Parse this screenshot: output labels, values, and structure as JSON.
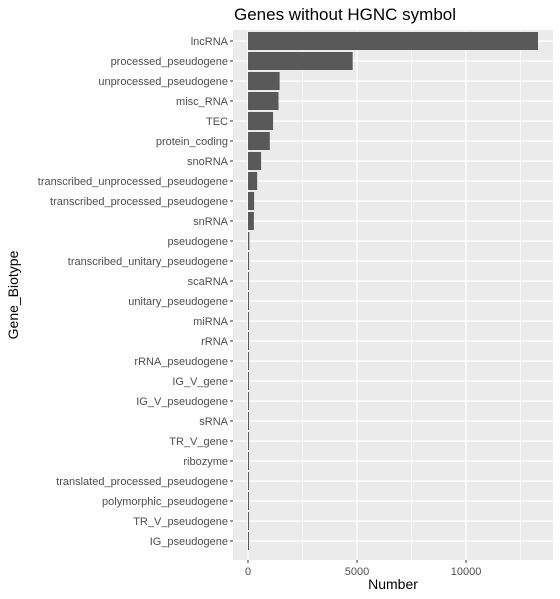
{
  "chart_data": {
    "type": "bar",
    "orientation": "horizontal",
    "title": "Genes without HGNC symbol",
    "xlabel": "Number",
    "ylabel": "Gene_Biotype",
    "xlim": [
      0,
      13700
    ],
    "xticks": [
      "0",
      "5000",
      "10000"
    ],
    "grid": true,
    "legend": "none",
    "colors": {
      "panel_background": "#ebebeb",
      "grid": "#ffffff",
      "bar_fill": "#595959",
      "tick_text": "#4d4d4d"
    },
    "categories": [
      "lncRNA",
      "processed_pseudogene",
      "unprocessed_pseudogene",
      "misc_RNA",
      "TEC",
      "protein_coding",
      "snoRNA",
      "transcribed_unprocessed_pseudogene",
      "transcribed_processed_pseudogene",
      "snRNA",
      "pseudogene",
      "transcribed_unitary_pseudogene",
      "scaRNA",
      "unitary_pseudogene",
      "miRNA",
      "rRNA",
      "rRNA_pseudogene",
      "IG_V_gene",
      "IG_V_pseudogene",
      "sRNA",
      "TR_V_gene",
      "ribozyme",
      "translated_processed_pseudogene",
      "polymorphic_pseudogene",
      "TR_V_pseudogene",
      "IG_pseudogene"
    ],
    "values": [
      13300,
      4800,
      1450,
      1400,
      1150,
      1000,
      600,
      420,
      280,
      270,
      60,
      50,
      40,
      40,
      30,
      25,
      20,
      15,
      15,
      12,
      10,
      8,
      6,
      5,
      4,
      3
    ]
  }
}
